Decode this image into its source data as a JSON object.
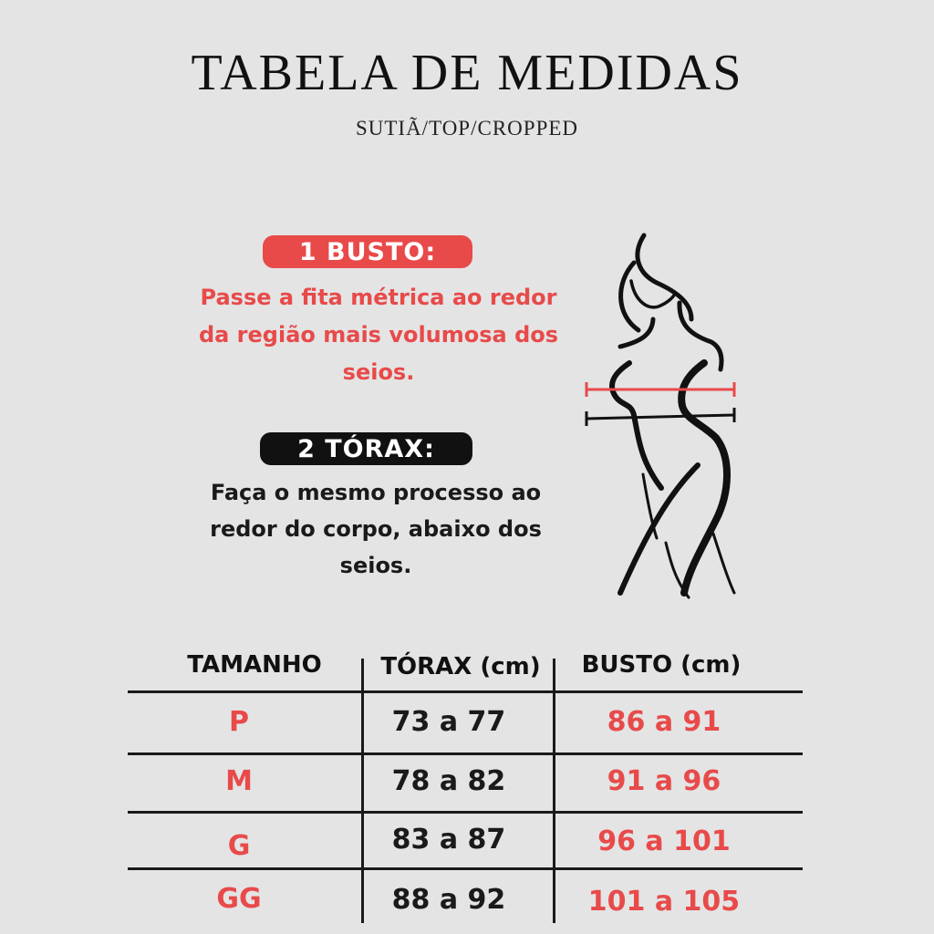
{
  "header": {
    "title": "TABELA DE MEDIDAS",
    "subtitle": "SUTIÃ/TOP/CROPPED"
  },
  "instructions": [
    {
      "label": "1 BUSTO:",
      "text": [
        "Passe a fita métrica ao redor",
        "da região mais volumosa dos",
        "seios."
      ],
      "color": "#e84a4a"
    },
    {
      "label": "2 TÓRAX:",
      "text": [
        "Faça o mesmo processo ao",
        "redor do corpo, abaixo dos",
        "seios."
      ],
      "color": "#111111"
    }
  ],
  "illustration": {
    "icon": "female-body-silhouette-icon",
    "bust_line_color": "#e84a4a",
    "chest_line_color": "#111111"
  },
  "table": {
    "headers": [
      "TAMANHO",
      "TÓRAX (cm)",
      "BUSTO (cm)"
    ],
    "rows": [
      [
        "P",
        "73 a 77",
        "86 a 91"
      ],
      [
        "M",
        "78 a 82",
        "91 a 96"
      ],
      [
        "G",
        "83 a 87",
        "96 a 101"
      ],
      [
        "GG",
        "88 a 92",
        "101 a 105"
      ]
    ]
  }
}
